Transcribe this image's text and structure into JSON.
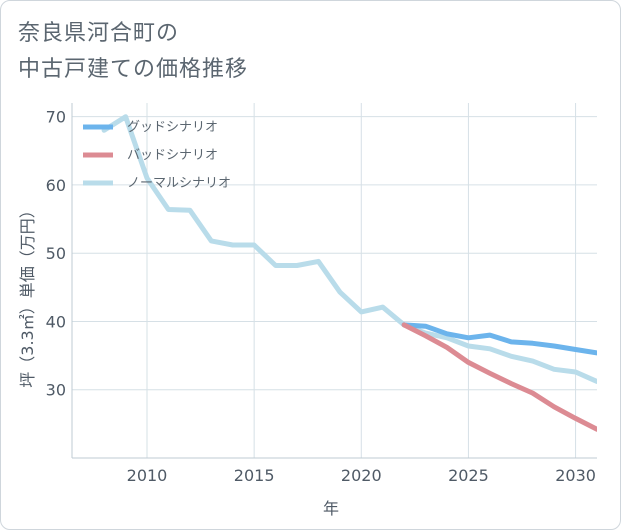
{
  "title_lines": [
    "奈良県河合町の",
    "中古戸建ての価格推移"
  ],
  "chart_data": {
    "type": "line",
    "xlabel": "年",
    "ylabel": "坪（3.3㎡）単価（万円）",
    "xlim": [
      2006.5,
      2031
    ],
    "ylim": [
      20,
      72
    ],
    "xticks": [
      2010,
      2015,
      2020,
      2025,
      2030
    ],
    "yticks": [
      30,
      40,
      50,
      60,
      70
    ],
    "grid": true,
    "legend_position": "top-left",
    "series": [
      {
        "name": "グッドシナリオ",
        "color": "#6cb4ec",
        "x": [
          2022,
          2023,
          2024,
          2025,
          2026,
          2027,
          2028,
          2029,
          2030,
          2031
        ],
        "y": [
          39.5,
          39.3,
          38.2,
          37.6,
          38.0,
          37.0,
          36.8,
          36.4,
          35.9,
          35.4
        ]
      },
      {
        "name": "バッドシナリオ",
        "color": "#dc8b93",
        "x": [
          2022,
          2023,
          2024,
          2025,
          2026,
          2027,
          2028,
          2029,
          2030,
          2031
        ],
        "y": [
          39.5,
          37.9,
          36.2,
          34.0,
          32.4,
          30.9,
          29.5,
          27.5,
          25.8,
          24.2
        ]
      },
      {
        "name": "ノーマルシナリオ",
        "color": "#b9dcea",
        "x": [
          2008,
          2009,
          2010,
          2011,
          2012,
          2013,
          2014,
          2015,
          2016,
          2017,
          2018,
          2019,
          2020,
          2021,
          2022,
          2023,
          2024,
          2025,
          2026,
          2027,
          2028,
          2029,
          2030,
          2031
        ],
        "y": [
          68.0,
          70.0,
          61.0,
          56.4,
          56.3,
          51.8,
          51.2,
          51.2,
          48.2,
          48.2,
          48.8,
          44.3,
          41.4,
          42.1,
          39.5,
          38.3,
          37.6,
          36.4,
          36.0,
          34.9,
          34.2,
          33.0,
          32.6,
          31.2
        ]
      }
    ]
  }
}
